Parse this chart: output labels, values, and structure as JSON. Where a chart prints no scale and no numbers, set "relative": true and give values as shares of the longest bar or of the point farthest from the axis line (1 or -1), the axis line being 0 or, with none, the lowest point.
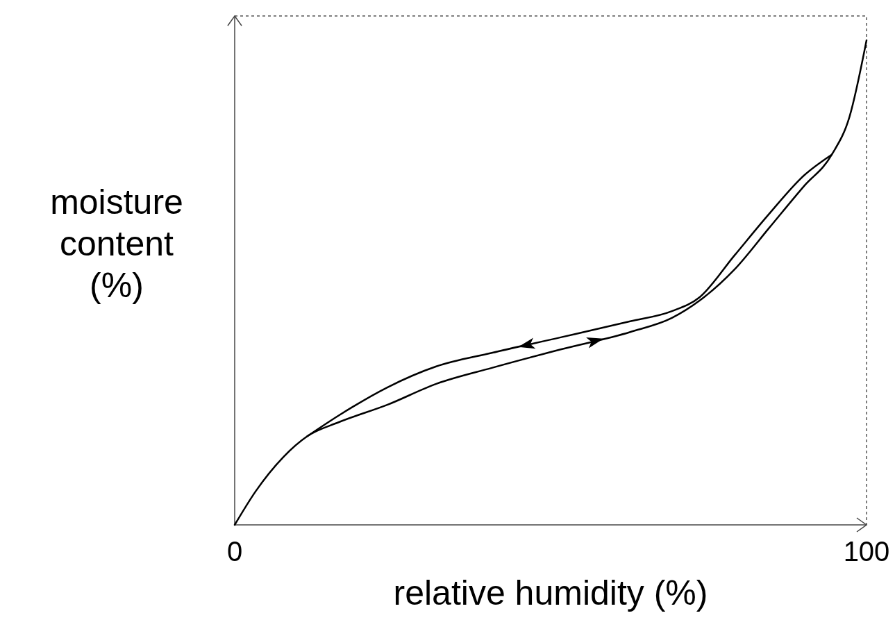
{
  "chart_data": {
    "type": "line",
    "relative": true,
    "xlabel": "relative humidity (%)",
    "ylabel": "moisture content (%)",
    "xlim": [
      0,
      100
    ],
    "xticks": [
      0,
      100
    ],
    "series": [
      {
        "color": "#000000",
        "x": [
          0,
          3.3,
          7.7,
          11.5,
          16.5,
          24.2,
          31.9,
          40.7,
          51.6,
          62.6,
          69.2,
          73.6,
          79.1,
          84.6,
          90.1,
          94.5,
          97.3,
          100
        ],
        "values": [
          0,
          0.069,
          0.14,
          0.183,
          0.212,
          0.248,
          0.291,
          0.324,
          0.362,
          0.398,
          0.427,
          0.463,
          0.527,
          0.613,
          0.699,
          0.764,
          0.842,
          1
        ]
      },
      {
        "color": "#000000",
        "x": [
          11.5,
          16.5,
          24.2,
          31.9,
          40.7,
          51.6,
          62.6,
          69.2,
          73.6,
          79.1,
          84.6,
          90.1,
          94.5
        ],
        "values": [
          0.183,
          0.226,
          0.284,
          0.327,
          0.355,
          0.387,
          0.42,
          0.441,
          0.47,
          0.556,
          0.642,
          0.721,
          0.764
        ]
      }
    ]
  }
}
